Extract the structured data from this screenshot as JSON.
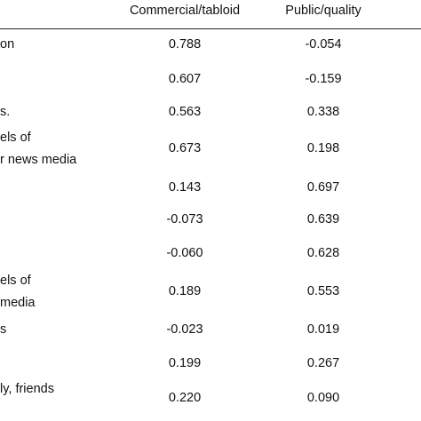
{
  "table": {
    "columns": [
      "Commercial/tabloid",
      "Public/quality"
    ],
    "rows": [
      {
        "label": [
          "on"
        ],
        "values": [
          "0.788",
          "-0.054"
        ]
      },
      {
        "values": [
          "0.607",
          "-0.159"
        ]
      },
      {
        "label": [
          "s."
        ],
        "values": [
          "0.563",
          "0.338"
        ]
      },
      {
        "label": [
          "els of",
          "r news media"
        ],
        "values": [
          "0.673",
          "0.198"
        ]
      },
      {
        "values": [
          "0.143",
          "0.697"
        ]
      },
      {
        "values": [
          "-0.073",
          "0.639"
        ]
      },
      {
        "values": [
          "-0.060",
          "0.628"
        ]
      },
      {
        "label": [
          "els of",
          "media"
        ],
        "values": [
          "0.189",
          "0.553"
        ]
      },
      {
        "label": [
          "s"
        ],
        "values": [
          "-0.023",
          "0.019"
        ]
      },
      {
        "values": [
          "0.199",
          "0.267"
        ]
      },
      {
        "label": [
          "ly, friends"
        ],
        "values": [
          "0.220",
          "0.090"
        ]
      }
    ]
  }
}
